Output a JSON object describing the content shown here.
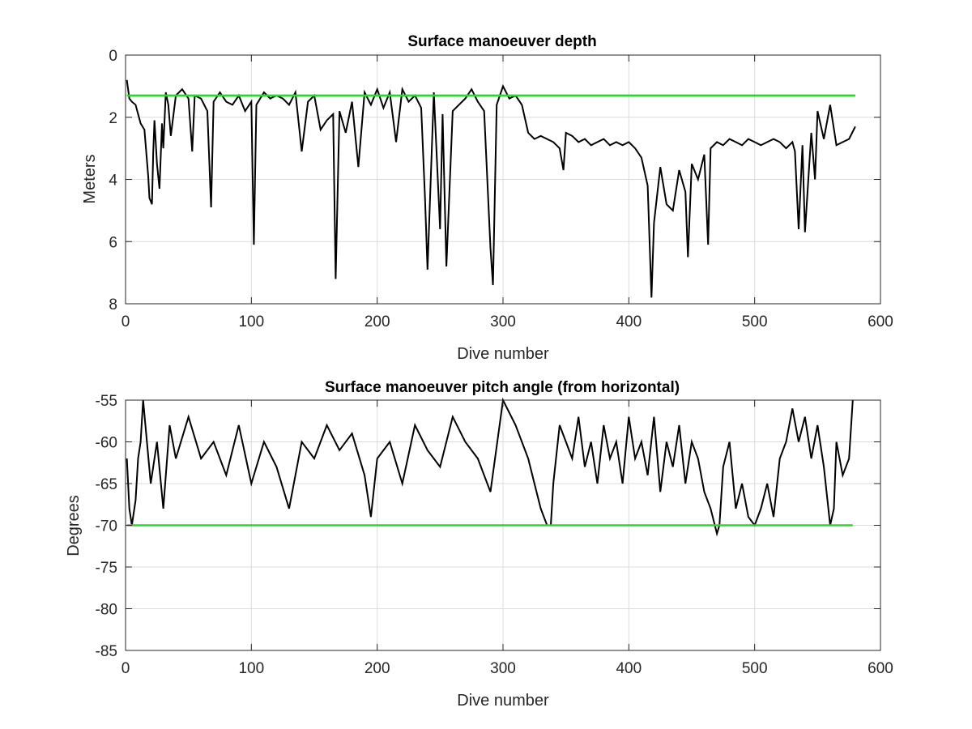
{
  "chart_data": [
    {
      "type": "line",
      "title": "Surface manoeuver depth",
      "xlabel": "Dive number",
      "ylabel": "Meters",
      "xlim": [
        0,
        600
      ],
      "ylim": [
        0,
        8
      ],
      "y_reversed": true,
      "grid": true,
      "xticks": [
        "0",
        "100",
        "200",
        "300",
        "400",
        "500",
        "600"
      ],
      "yticks": [
        "0",
        "2",
        "4",
        "6",
        "8"
      ],
      "series": [
        {
          "color": "#000000",
          "x": [
            1,
            3,
            5,
            8,
            12,
            15,
            18,
            19,
            20,
            21,
            22,
            23,
            25,
            27,
            29,
            30,
            32,
            34,
            36,
            40,
            45,
            50,
            53,
            55,
            60,
            65,
            68,
            70,
            75,
            80,
            85,
            90,
            95,
            100,
            102,
            104,
            110,
            115,
            120,
            125,
            130,
            135,
            140,
            145,
            150,
            155,
            160,
            165,
            167,
            170,
            175,
            180,
            185,
            190,
            195,
            200,
            205,
            210,
            215,
            220,
            225,
            230,
            235,
            238,
            240,
            245,
            250,
            252,
            255,
            260,
            265,
            270,
            275,
            280,
            285,
            290,
            292,
            295,
            300,
            305,
            310,
            315,
            320,
            325,
            330,
            335,
            340,
            345,
            348,
            350,
            355,
            360,
            365,
            370,
            375,
            380,
            385,
            390,
            395,
            400,
            405,
            410,
            415,
            418,
            420,
            425,
            430,
            435,
            440,
            445,
            447,
            450,
            455,
            460,
            463,
            465,
            470,
            475,
            480,
            485,
            490,
            495,
            500,
            505,
            510,
            515,
            520,
            525,
            530,
            532,
            535,
            538,
            540,
            545,
            548,
            550,
            555,
            560,
            565,
            570,
            575,
            580
          ],
          "values": [
            0.8,
            1.4,
            1.5,
            1.6,
            2.2,
            2.4,
            3.9,
            4.6,
            4.7,
            4.8,
            3.1,
            2.1,
            3.5,
            4.3,
            2.2,
            3.0,
            1.2,
            1.6,
            2.6,
            1.3,
            1.1,
            1.4,
            3.1,
            1.3,
            1.4,
            1.8,
            4.9,
            1.5,
            1.2,
            1.5,
            1.6,
            1.3,
            1.8,
            1.5,
            6.1,
            1.6,
            1.2,
            1.4,
            1.3,
            1.4,
            1.6,
            1.2,
            3.1,
            1.5,
            1.3,
            2.4,
            2.1,
            1.9,
            7.2,
            1.8,
            2.5,
            1.5,
            3.6,
            1.2,
            1.6,
            1.1,
            1.7,
            1.2,
            2.8,
            1.1,
            1.5,
            1.3,
            1.7,
            4.6,
            6.9,
            1.2,
            5.6,
            1.9,
            6.8,
            1.8,
            1.6,
            1.4,
            1.1,
            1.5,
            1.8,
            6.2,
            7.4,
            1.6,
            1.0,
            1.4,
            1.3,
            1.6,
            2.5,
            2.7,
            2.6,
            2.7,
            2.8,
            3.0,
            3.7,
            2.5,
            2.6,
            2.8,
            2.7,
            2.9,
            2.8,
            2.7,
            2.9,
            2.8,
            2.9,
            2.8,
            3.0,
            3.3,
            4.2,
            7.8,
            5.4,
            3.6,
            4.8,
            5.0,
            3.7,
            4.4,
            6.5,
            3.5,
            4.0,
            3.2,
            6.1,
            3.0,
            2.8,
            2.9,
            2.7,
            2.8,
            2.9,
            2.7,
            2.8,
            2.9,
            2.8,
            2.7,
            2.8,
            3.0,
            2.8,
            3.1,
            5.6,
            2.9,
            5.7,
            2.5,
            4.0,
            1.8,
            2.7,
            1.6,
            2.9,
            2.8,
            2.7,
            2.3
          ],
          "hline": 1.3,
          "hline_color": "#22dd22"
        }
      ]
    },
    {
      "type": "line",
      "title": "Surface manoeuver pitch angle (from horizontal)",
      "xlabel": "Dive number",
      "ylabel": "Degrees",
      "xlim": [
        0,
        600
      ],
      "ylim": [
        -85,
        -55
      ],
      "grid": true,
      "xticks": [
        "0",
        "100",
        "200",
        "300",
        "400",
        "500",
        "600"
      ],
      "yticks": [
        "-55",
        "-60",
        "-65",
        "-70",
        "-75",
        "-80",
        "-85"
      ],
      "series": [
        {
          "color": "#000000",
          "x": [
            1,
            3,
            5,
            8,
            10,
            12,
            14,
            20,
            25,
            30,
            35,
            40,
            50,
            60,
            70,
            80,
            90,
            100,
            110,
            120,
            130,
            140,
            150,
            160,
            170,
            180,
            190,
            195,
            200,
            210,
            220,
            230,
            240,
            250,
            260,
            270,
            280,
            290,
            300,
            310,
            320,
            325,
            330,
            335,
            338,
            340,
            345,
            350,
            355,
            360,
            365,
            370,
            375,
            380,
            385,
            390,
            395,
            400,
            405,
            410,
            415,
            420,
            425,
            430,
            435,
            440,
            445,
            450,
            455,
            460,
            465,
            470,
            472,
            475,
            480,
            485,
            490,
            495,
            500,
            505,
            510,
            515,
            520,
            525,
            530,
            535,
            540,
            545,
            550,
            555,
            560,
            563,
            565,
            570,
            575,
            578
          ],
          "values": [
            -62,
            -68,
            -70,
            -67,
            -62,
            -60,
            -55,
            -65,
            -60,
            -68,
            -58,
            -62,
            -57,
            -62,
            -60,
            -64,
            -58,
            -65,
            -60,
            -63,
            -68,
            -60,
            -62,
            -58,
            -61,
            -59,
            -64,
            -69,
            -62,
            -60,
            -65,
            -58,
            -61,
            -63,
            -57,
            -60,
            -62,
            -66,
            -55,
            -58,
            -62,
            -65,
            -68,
            -70,
            -70,
            -65,
            -58,
            -60,
            -62,
            -57,
            -63,
            -60,
            -65,
            -58,
            -62,
            -60,
            -65,
            -57,
            -62,
            -60,
            -64,
            -57,
            -66,
            -60,
            -63,
            -58,
            -65,
            -60,
            -62,
            -66,
            -68,
            -71,
            -70,
            -63,
            -60,
            -68,
            -65,
            -69,
            -70,
            -68,
            -65,
            -69,
            -62,
            -60,
            -56,
            -60,
            -57,
            -62,
            -58,
            -63,
            -70,
            -68,
            -60,
            -64,
            -62,
            -55
          ],
          "hline": -70,
          "hline_color": "#22dd22"
        }
      ]
    }
  ]
}
